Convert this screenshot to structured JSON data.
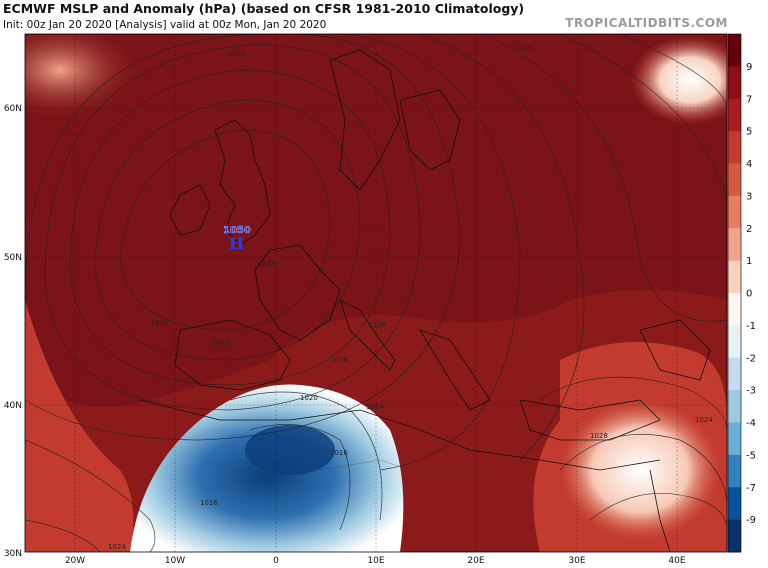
{
  "header": {
    "title": "ECMWF MSLP and Anomaly (hPa) (based on CFSR 1981-2010 Climatology)",
    "subtitle": "Init: 00z Jan 20 2020   [Analysis]   valid at 00z Mon, Jan 20 2020",
    "credit": "TROPICALTIDBITS.COM"
  },
  "map": {
    "lat_labels": [
      "60N",
      "50N",
      "40N",
      "30N"
    ],
    "lon_labels": [
      "20W",
      "10W",
      "0",
      "10E",
      "20E",
      "30E",
      "40E"
    ],
    "high_center": {
      "value": "1050",
      "symbol": "H"
    },
    "isobar_labels": [
      "1016",
      "1020",
      "1024",
      "1028",
      "1032",
      "1036",
      "1040",
      "1044",
      "1048",
      "1016",
      "1020",
      "1024",
      "1028",
      "1024"
    ]
  },
  "colorbar": {
    "labels": [
      "9",
      "7",
      "5",
      "4",
      "3",
      "2",
      "1",
      "0",
      "-1",
      "-2",
      "-3",
      "-4",
      "-5",
      "-7",
      "-9"
    ],
    "colors": [
      "#67000d",
      "#8e0d17",
      "#a81c1f",
      "#c23b2e",
      "#d45a45",
      "#e57e62",
      "#f2a48a",
      "#fbd0bd",
      "#fff5f0",
      "#e8f1f8",
      "#c6dbef",
      "#9ecae1",
      "#6baed6",
      "#3182bd",
      "#08519c",
      "#08306b"
    ]
  },
  "colors": {
    "strong_positive": "#8b1a1a",
    "positive": "#c0392b",
    "neutral": "#ffffff",
    "negative": "#2f6fb0",
    "strong_negative": "#0b3d7a"
  }
}
